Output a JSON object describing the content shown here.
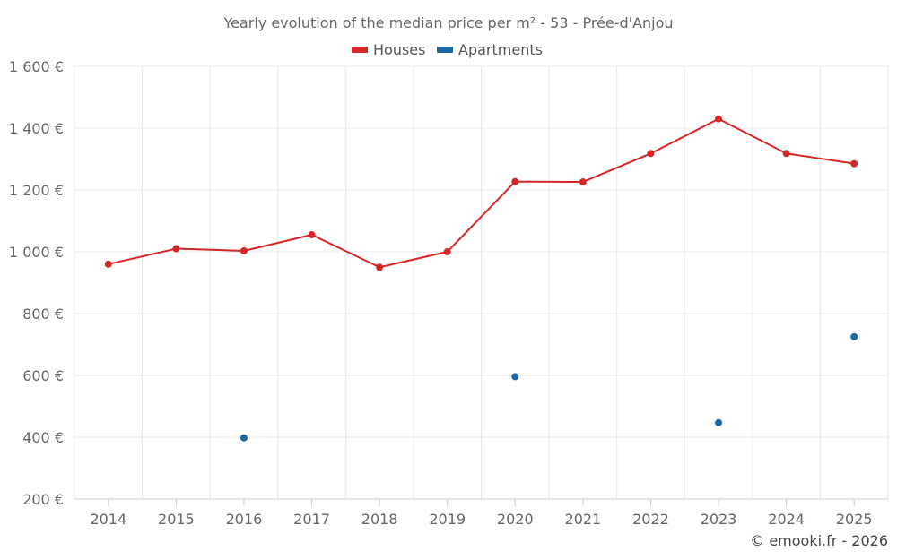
{
  "chart_data": {
    "type": "line",
    "title": "Yearly evolution of the median price per m² - 53 - Prée-d'Anjou",
    "categories": [
      "2014",
      "2015",
      "2016",
      "2017",
      "2018",
      "2019",
      "2020",
      "2021",
      "2022",
      "2023",
      "2024",
      "2025"
    ],
    "series": [
      {
        "name": "Houses",
        "color": "#d62728",
        "style": "line-markers",
        "values": [
          960,
          1010,
          1003,
          1055,
          950,
          1000,
          1227,
          1226,
          1318,
          1430,
          1318,
          1285
        ]
      },
      {
        "name": "Apartments",
        "color": "#1a6aa0",
        "style": "markers",
        "values": [
          null,
          null,
          398,
          null,
          null,
          null,
          596,
          null,
          null,
          447,
          null,
          725
        ]
      }
    ],
    "ylim": [
      200,
      1600
    ],
    "yticks": [
      200,
      400,
      600,
      800,
      1000,
      1200,
      1400,
      1600
    ],
    "ytick_labels": [
      "200 €",
      "400 €",
      "600 €",
      "800 €",
      "1 000 €",
      "1 200 €",
      "1 400 €",
      "1 600 €"
    ],
    "xlabel": "",
    "ylabel": "",
    "grid": true,
    "legend_position": "top-center"
  },
  "credit": "© emooki.fr - 2026"
}
